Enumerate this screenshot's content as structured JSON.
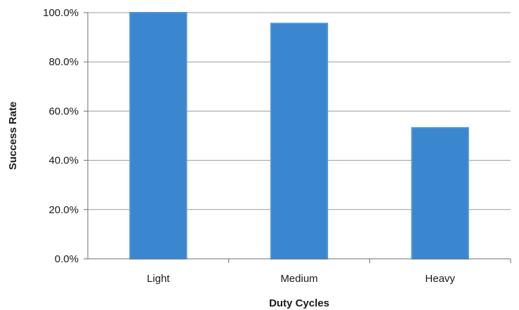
{
  "chart_data": {
    "type": "bar",
    "categories": [
      "Light",
      "Medium",
      "Heavy"
    ],
    "values": [
      100.0,
      95.6,
      53.2
    ],
    "xlabel": "Duty Cycles",
    "ylabel": "Success Rate",
    "ylim": [
      0,
      100
    ],
    "yticks": [
      0,
      20,
      40,
      60,
      80,
      100
    ],
    "ytick_labels": [
      "0.0%",
      "20.0%",
      "40.0%",
      "60.0%",
      "80.0%",
      "100.0%"
    ],
    "bar_color": "#3a86cf",
    "bar_edge_color": "#4f95d6",
    "grid": true,
    "legend": "none"
  }
}
